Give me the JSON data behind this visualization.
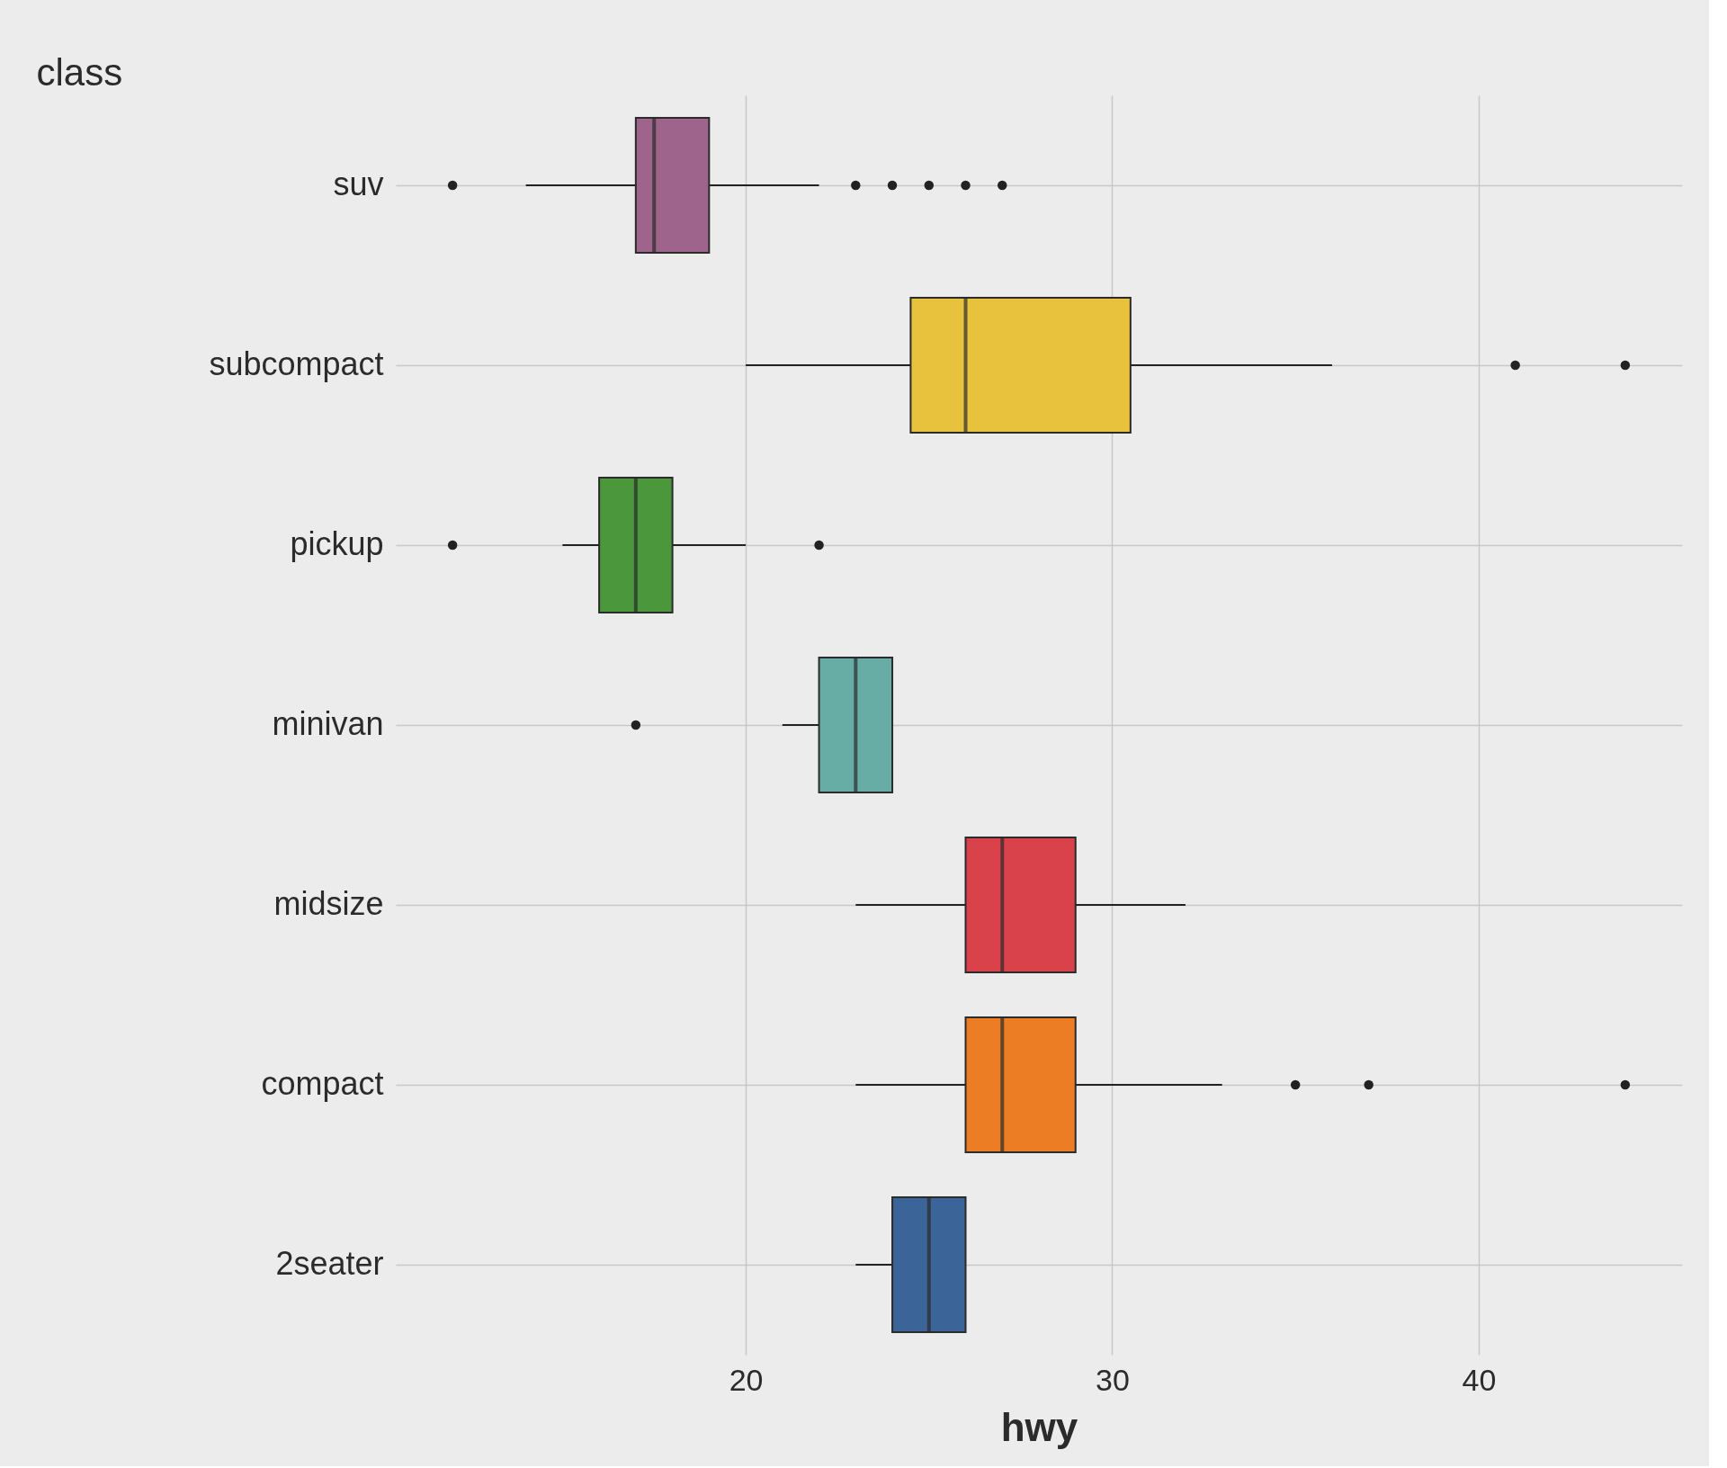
{
  "chart_data": {
    "type": "box",
    "orientation": "horizontal",
    "xlabel": "hwy",
    "ylabel": "class",
    "categories": [
      "suv",
      "subcompact",
      "pickup",
      "minivan",
      "midsize",
      "compact",
      "2seater"
    ],
    "colors": [
      "#9e648c",
      "#e8c13d",
      "#4a973c",
      "#67ada5",
      "#d9424a",
      "#ec7d24",
      "#3b6498"
    ],
    "boxes": [
      {
        "low": 14,
        "q1": 17,
        "median": 17.5,
        "q3": 19,
        "high": 22,
        "outliers": [
          12,
          23,
          24,
          25,
          26,
          27
        ]
      },
      {
        "low": 20,
        "q1": 24.5,
        "median": 26,
        "q3": 30.5,
        "high": 36,
        "outliers": [
          41,
          44
        ]
      },
      {
        "low": 15,
        "q1": 16,
        "median": 17,
        "q3": 18,
        "high": 20,
        "outliers": [
          12,
          22
        ]
      },
      {
        "low": 21,
        "q1": 22,
        "median": 23,
        "q3": 24,
        "high": 24,
        "outliers": [
          17
        ]
      },
      {
        "low": 23,
        "q1": 26,
        "median": 27,
        "q3": 29,
        "high": 32
      },
      {
        "low": 23,
        "q1": 26,
        "median": 27,
        "q3": 29,
        "high": 33,
        "outliers": [
          35,
          37,
          44
        ]
      },
      {
        "low": 23,
        "q1": 24,
        "median": 25,
        "q3": 26,
        "high": 26
      }
    ],
    "xlim": [
      10.45,
      45.55
    ],
    "xticks": [
      20,
      30,
      40
    ],
    "grid": true
  }
}
